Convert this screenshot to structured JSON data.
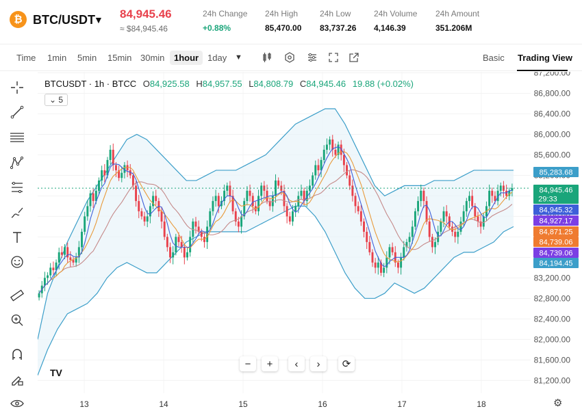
{
  "header": {
    "coin_symbol": "₿",
    "pair": "BTC/USDT",
    "price": "84,945.46",
    "price_usd": "≈ $84,945.46",
    "stats": [
      {
        "label": "24h Change",
        "value": "+0.88%",
        "up": true
      },
      {
        "label": "24h High",
        "value": "85,470.00"
      },
      {
        "label": "24h Low",
        "value": "83,737.26"
      },
      {
        "label": "24h Volume",
        "value": "4,146.39"
      },
      {
        "label": "24h Amount",
        "value": "351.206M"
      }
    ]
  },
  "toolbar": {
    "timeframes": [
      "Time",
      "1min",
      "5min",
      "15min",
      "30min",
      "1hour",
      "1day"
    ],
    "active_timeframe": "1hour",
    "view_basic": "Basic",
    "view_tradingview": "Trading View"
  },
  "legend": {
    "symbol": "BTCUSDT · 1h · BTCC",
    "o_label": "O",
    "o": "84,925.58",
    "h_label": "H",
    "h": "84,957.55",
    "l_label": "L",
    "l": "84,808.79",
    "c_label": "C",
    "c": "84,945.46",
    "change": "19.88 (+0.02%)",
    "indicator_count": "5"
  },
  "countdown": "29:33",
  "colors": {
    "up": "#1aa57a",
    "down": "#e8414c",
    "bollinger": "#3b9ec9",
    "ma_fast": "#3d5fd9",
    "ma_mid": "#e89a3a",
    "ma_slow": "#c58a8a"
  },
  "chart_data": {
    "type": "candlestick",
    "x_ticks": [
      "13",
      "14",
      "15",
      "16",
      "17",
      "18"
    ],
    "y_ticks": [
      81200,
      81600,
      82000,
      82400,
      82800,
      83200,
      83600,
      84000,
      84400,
      84800,
      85200,
      85600,
      86000,
      86400,
      86800,
      87200
    ],
    "ylim": [
      80950,
      87220
    ],
    "price_labels": [
      {
        "value": "85,283.68",
        "color": "#3b9ec9"
      },
      {
        "value": "84,945.46",
        "color": "#1aa57a"
      },
      {
        "value": "84,945.32",
        "color": "#3d5fd9"
      },
      {
        "value": "84,927.17",
        "color": "#7b3fe4"
      },
      {
        "value": "84,871.25",
        "color": "#ef7b30"
      },
      {
        "value": "84,739.06",
        "color": "#ef7b30"
      },
      {
        "value": "84,739.06",
        "color": "#7b3fe4"
      },
      {
        "value": "84,194.45",
        "color": "#3b9ec9"
      }
    ],
    "closes": [
      82900,
      83050,
      83200,
      83250,
      83400,
      83350,
      83500,
      83700,
      83650,
      83800,
      83600,
      83550,
      83500,
      83600,
      83800,
      84100,
      84400,
      84600,
      84850,
      84700,
      84900,
      85100,
      85300,
      85200,
      85500,
      85700,
      85400,
      85300,
      85150,
      85250,
      85400,
      85300,
      85200,
      85000,
      84700,
      84500,
      84400,
      84300,
      84400,
      84600,
      84800,
      84700,
      84500,
      84300,
      84000,
      83800,
      83600,
      83700,
      84000,
      83900,
      83800,
      83600,
      83700,
      84000,
      84300,
      84200,
      84100,
      84000,
      83900,
      84200,
      84500,
      84700,
      84800,
      84600,
      84700,
      84900,
      85000,
      84800,
      84500,
      84300,
      84200,
      84400,
      84700,
      84900,
      84800,
      84600,
      84500,
      84800,
      85000,
      84900,
      84700,
      84600,
      84800,
      85100,
      85000,
      84900,
      84600,
      84400,
      84300,
      84500,
      84600,
      84800,
      84900,
      84700,
      84900,
      85000,
      85200,
      85400,
      85300,
      85500,
      85700,
      85800,
      85900,
      85700,
      85600,
      85800,
      85600,
      85400,
      85200,
      85000,
      84800,
      84600,
      84500,
      84300,
      84100,
      83900,
      83700,
      83500,
      83400,
      83500,
      83300,
      83400,
      83600,
      83800,
      83700,
      83500,
      83400,
      83600,
      83800,
      83900,
      84000,
      84200,
      84500,
      84700,
      84900,
      84700,
      84300,
      84000,
      83800,
      83900,
      84100,
      84300,
      84500,
      84400,
      84200,
      84100,
      84000,
      84100,
      84300,
      84500,
      84700,
      84800,
      84600,
      84400,
      84300,
      84200,
      84400,
      84600,
      84900,
      84800,
      84700,
      84900,
      85000,
      84900,
      84800,
      84900,
      84950
    ],
    "bb_upper": [
      82000,
      82900,
      83400,
      83900,
      84300,
      84700,
      85000,
      85300,
      85600,
      85900,
      86000,
      85900,
      85700,
      85500,
      85300,
      85100,
      85100,
      85200,
      85300,
      85300,
      85300,
      85400,
      85500,
      85600,
      85800,
      86000,
      86200,
      86300,
      86400,
      86500,
      86500,
      86200,
      85800,
      85400,
      85000,
      84800,
      84900,
      85000,
      85000,
      85000,
      85100,
      85100,
      85100,
      85200,
      85300,
      85300,
      85300,
      85300,
      85300
    ],
    "bb_lower": [
      81300,
      81800,
      82200,
      82500,
      82600,
      82700,
      82900,
      83200,
      83400,
      83500,
      83400,
      83300,
      83300,
      83500,
      83700,
      83900,
      84000,
      84100,
      84100,
      84100,
      84100,
      84100,
      84200,
      84300,
      84400,
      84500,
      84600,
      84600,
      84400,
      84100,
      83700,
      83300,
      83000,
      82800,
      82800,
      82900,
      83100,
      83000,
      82900,
      83000,
      83200,
      83400,
      83600,
      83700,
      83700,
      83800,
      83900,
      84100,
      84200
    ]
  },
  "tools": [
    "crosshair-icon",
    "trendline-icon",
    "horizontal-lines-icon",
    "pattern-icon",
    "fib-icon",
    "brush-icon",
    "text-icon",
    "emoji-icon",
    "ruler-icon",
    "zoom-icon",
    "magnet-icon",
    "lock-pencil-icon",
    "eye-icon"
  ],
  "nav": {
    "zoom_out": "−",
    "zoom_in": "+",
    "left": "‹",
    "right": "›",
    "reset": "⟳"
  },
  "tv_logo": "TV"
}
